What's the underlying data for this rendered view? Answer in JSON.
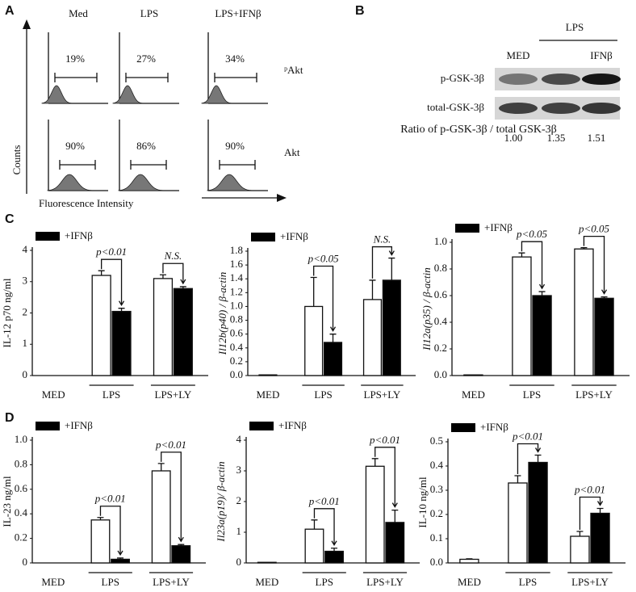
{
  "panel_labels": [
    "A",
    "B",
    "C",
    "D"
  ],
  "panel_a": {
    "columns": [
      "Med",
      "LPS",
      "LPS+IFNβ"
    ],
    "rows": [
      "ᵖAkt",
      "Akt"
    ],
    "percents": [
      [
        "19%",
        "27%",
        "34%"
      ],
      [
        "90%",
        "86%",
        "90%"
      ]
    ],
    "y_axis": "Counts",
    "x_axis": "Fluorescence Intensity"
  },
  "panel_b": {
    "group": "LPS",
    "lanes": [
      "MED",
      null,
      "IFNβ"
    ],
    "rows": [
      "p-GSK-3β",
      "total-GSK-3β"
    ],
    "ratio_label": "Ratio of p-GSK-3β / total GSK-3β",
    "ratios": [
      "1.00",
      "1.35",
      "1.51"
    ]
  },
  "chart_data": [
    {
      "type": "bar",
      "ylabel": "IL-12 p70 ng/ml",
      "categories": [
        "MED",
        "LPS",
        "LPS+LY"
      ],
      "series": [
        {
          "color": "#ffffff",
          "values": [
            0,
            3.2,
            3.1
          ],
          "errors": [
            null,
            0.15,
            0.12
          ]
        },
        {
          "name": "+IFNβ",
          "color": "#000000",
          "values": [
            null,
            2.05,
            2.78
          ],
          "errors": [
            null,
            0.1,
            0.06
          ]
        }
      ],
      "ylim": [
        0,
        4
      ],
      "yticks": [
        0,
        1,
        2,
        3,
        4
      ],
      "annotations": [
        "p<0.01",
        "N.S."
      ]
    },
    {
      "type": "bar",
      "ylabel": "Il12b(p40) / β-actin",
      "categories": [
        "MED",
        "LPS",
        "LPS+LY"
      ],
      "series": [
        {
          "color": "#ffffff",
          "values": [
            0.01,
            1.0,
            1.1
          ],
          "errors": [
            null,
            0.42,
            0.28
          ]
        },
        {
          "name": "+IFNβ",
          "color": "#000000",
          "values": [
            null,
            0.48,
            1.38
          ],
          "errors": [
            null,
            0.12,
            0.32
          ]
        }
      ],
      "ylim": [
        0,
        1.8
      ],
      "yticks": [
        {
          "value": 0,
          "label": "0.0"
        },
        0.2,
        0.4,
        0.6,
        0.8,
        {
          "value": 1,
          "label": "1.0"
        },
        1.2,
        1.4,
        1.6,
        1.8
      ],
      "annotations": [
        "p<0.05",
        "N.S."
      ]
    },
    {
      "type": "bar",
      "ylabel": "Il12a(p35) / β-actin",
      "categories": [
        "MED",
        "LPS",
        "LPS+LY"
      ],
      "series": [
        {
          "color": "#ffffff",
          "values": [
            0.005,
            0.89,
            0.95
          ],
          "errors": [
            null,
            0.03,
            0.01
          ]
        },
        {
          "name": "+IFNβ",
          "color": "#000000",
          "values": [
            null,
            0.6,
            0.58
          ],
          "errors": [
            null,
            0.03,
            0.01
          ]
        }
      ],
      "ylim": [
        0,
        1
      ],
      "yticks": [
        {
          "value": 0,
          "label": "0.0"
        },
        0.2,
        0.4,
        0.6,
        0.8,
        {
          "value": 1,
          "label": "1.0"
        }
      ],
      "annotations": [
        "p<0.05",
        "p<0.05"
      ]
    },
    {
      "type": "bar",
      "ylabel": "IL-23 ng/ml",
      "categories": [
        "MED",
        "LPS",
        "LPS+LY"
      ],
      "series": [
        {
          "color": "#ffffff",
          "values": [
            0,
            0.35,
            0.75
          ],
          "errors": [
            null,
            0.02,
            0.06
          ]
        },
        {
          "name": "+IFNβ",
          "color": "#000000",
          "values": [
            null,
            0.03,
            0.14
          ],
          "errors": [
            null,
            0.01,
            0.01
          ]
        }
      ],
      "ylim": [
        0,
        1
      ],
      "yticks": [
        0,
        0.2,
        0.4,
        0.6,
        0.8,
        {
          "value": 1,
          "label": "1.0"
        }
      ],
      "annotations": [
        "p<0.01",
        "p<0.01"
      ]
    },
    {
      "type": "bar",
      "ylabel": "Il23a(p19)/ β-actin",
      "categories": [
        "MED",
        "LPS",
        "LPS+LY"
      ],
      "series": [
        {
          "color": "#ffffff",
          "values": [
            0.02,
            1.1,
            3.15
          ],
          "errors": [
            null,
            0.3,
            0.25
          ]
        },
        {
          "name": "+IFNβ",
          "color": "#000000",
          "values": [
            null,
            0.38,
            1.32
          ],
          "errors": [
            null,
            0.1,
            0.4
          ]
        }
      ],
      "ylim": [
        0,
        4
      ],
      "yticks": [
        0,
        1,
        2,
        3,
        4
      ],
      "annotations": [
        "p<0.01",
        "p<0.01"
      ]
    },
    {
      "type": "bar",
      "ylabel": "IL-10 ng/ml",
      "categories": [
        "MED",
        "LPS",
        "LPS+LY"
      ],
      "series": [
        {
          "color": "#ffffff",
          "values": [
            0.015,
            0.33,
            0.11
          ],
          "errors": [
            0.002,
            0.03,
            0.02
          ]
        },
        {
          "name": "+IFNβ",
          "color": "#000000",
          "values": [
            null,
            0.415,
            0.205
          ],
          "errors": [
            null,
            0.03,
            0.02
          ]
        }
      ],
      "ylim": [
        0,
        0.5
      ],
      "yticks": [
        {
          "value": 0,
          "label": "0.0"
        },
        0.1,
        0.2,
        0.3,
        0.4,
        0.5
      ],
      "annotations": [
        "p<0.01",
        "p<0.01"
      ]
    }
  ]
}
